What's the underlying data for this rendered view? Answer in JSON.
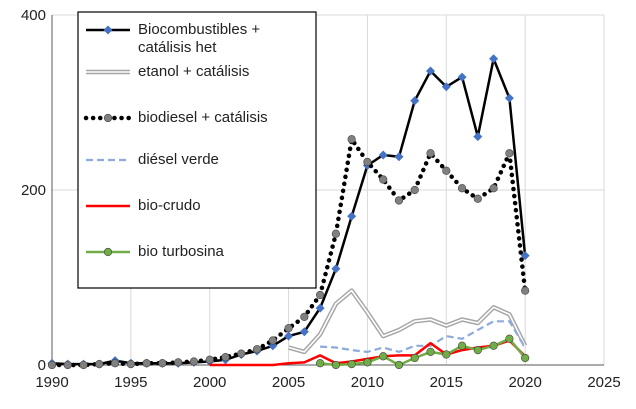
{
  "chart_data": {
    "type": "line",
    "xlim": [
      1990,
      2025
    ],
    "ylim": [
      0,
      400
    ],
    "x_ticks": [
      "1990",
      "1995",
      "2000",
      "2005",
      "2010",
      "2015",
      "2020",
      "2025"
    ],
    "y_ticks": [
      "0",
      "200",
      "400"
    ],
    "grid": "vertical-and-horizontal",
    "legend_position": "top-left",
    "series": [
      {
        "name": "Biocombustibles  + catálisis het",
        "color": "#000000",
        "style": "solid",
        "marker": "diamond",
        "marker_color": "#4472c4",
        "x": [
          1990,
          1991,
          1992,
          1993,
          1994,
          1995,
          1996,
          1997,
          1998,
          1999,
          2000,
          2001,
          2002,
          2003,
          2004,
          2005,
          2006,
          2007,
          2008,
          2009,
          2010,
          2011,
          2012,
          2013,
          2014,
          2015,
          2016,
          2017,
          2018,
          2019,
          2020
        ],
        "y": [
          2,
          1,
          1,
          1,
          5,
          2,
          2,
          2,
          2,
          3,
          4,
          6,
          12,
          16,
          22,
          33,
          38,
          65,
          110,
          170,
          228,
          240,
          238,
          302,
          336,
          318,
          329,
          261,
          350,
          305,
          125
        ]
      },
      {
        "name": "etanol + catálisis",
        "color": "#a6a6a6",
        "style": "double",
        "marker": "none",
        "x": [
          2005,
          2006,
          2007,
          2008,
          2009,
          2010,
          2011,
          2012,
          2013,
          2014,
          2015,
          2016,
          2017,
          2018,
          2019,
          2020
        ],
        "y": [
          20,
          15,
          35,
          70,
          85,
          60,
          33,
          40,
          50,
          52,
          45,
          52,
          48,
          66,
          58,
          22
        ]
      },
      {
        "name": "biodiesel + catálisis",
        "color": "#000000",
        "style": "dotted",
        "marker": "circle",
        "marker_color": "#808080",
        "x": [
          1990,
          1991,
          1992,
          1993,
          1994,
          1995,
          1996,
          1997,
          1998,
          1999,
          2000,
          2001,
          2002,
          2003,
          2004,
          2005,
          2006,
          2007,
          2008,
          2009,
          2010,
          2011,
          2012,
          2013,
          2014,
          2015,
          2016,
          2017,
          2018,
          2019,
          2020
        ],
        "y": [
          0,
          0,
          0,
          1,
          2,
          1,
          2,
          2,
          3,
          4,
          6,
          9,
          13,
          18,
          28,
          42,
          55,
          80,
          150,
          258,
          232,
          212,
          188,
          200,
          242,
          222,
          202,
          190,
          202,
          242,
          85
        ]
      },
      {
        "name": "diésel verde",
        "color": "#8eaadb",
        "style": "dashed",
        "marker": "none",
        "x": [
          2007,
          2008,
          2009,
          2010,
          2011,
          2012,
          2013,
          2014,
          2015,
          2016,
          2017,
          2018,
          2019,
          2020
        ],
        "y": [
          21,
          20,
          17,
          15,
          20,
          15,
          22,
          22,
          33,
          30,
          40,
          50,
          50,
          20
        ]
      },
      {
        "name": "bio-crudo",
        "color": "#ff0000",
        "style": "solid",
        "marker": "none",
        "x": [
          2000,
          2001,
          2002,
          2003,
          2004,
          2005,
          2006,
          2007,
          2008,
          2009,
          2010,
          2011,
          2012,
          2013,
          2014,
          2015,
          2016,
          2017,
          2018,
          2019,
          2020
        ],
        "y": [
          0,
          0,
          0,
          0,
          0,
          2,
          3,
          11,
          2,
          4,
          7,
          10,
          11,
          11,
          25,
          12,
          17,
          20,
          22,
          28,
          10
        ]
      },
      {
        "name": "bio turbosina",
        "color": "#70ad47",
        "style": "solid",
        "marker": "circle",
        "marker_color": "#70ad47",
        "x": [
          2007,
          2008,
          2009,
          2010,
          2011,
          2012,
          2013,
          2014,
          2015,
          2016,
          2017,
          2018,
          2019,
          2020
        ],
        "y": [
          2,
          0,
          1,
          3,
          10,
          0,
          8,
          15,
          12,
          22,
          17,
          22,
          30,
          8
        ]
      }
    ]
  }
}
